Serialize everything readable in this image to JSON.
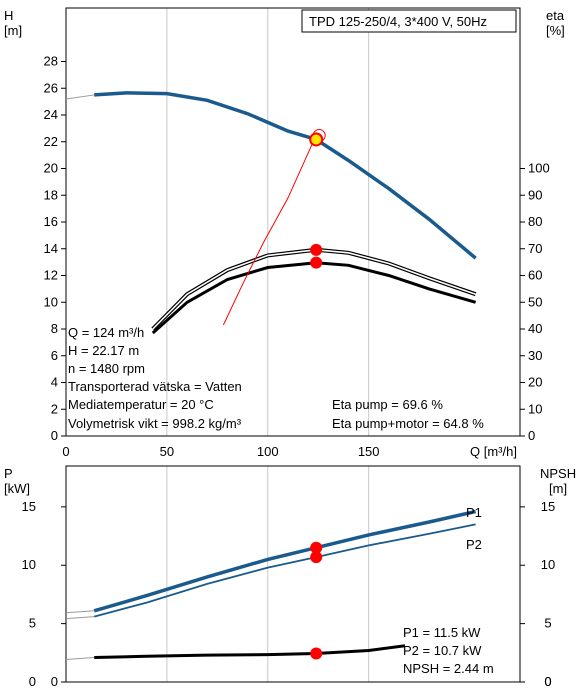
{
  "colors": {
    "head": "#1a5a8c",
    "p1": "#1a5a8c",
    "p2": "#1a5a8c",
    "eta": "#000000",
    "npsh": "#000000",
    "duty_marker": "#ff0000",
    "efficiency_line": "#ff0000",
    "grid": "#c8c8c8"
  },
  "chart_data": [
    {
      "type": "line",
      "title": "TPD 125-250/4, 3*400 V, 50Hz",
      "xlabel": "Q [m³/h]",
      "ylabel": "H",
      "ylabel_unit": "[m]",
      "ylabel_right": "eta",
      "ylabel_right_unit": "[%]",
      "x_ticks": [
        0,
        50,
        100,
        150
      ],
      "y_ticks": [
        0,
        2,
        4,
        6,
        8,
        10,
        12,
        14,
        16,
        18,
        20,
        22,
        24,
        26,
        28
      ],
      "y_right_ticks": [
        0,
        10,
        20,
        30,
        40,
        50,
        60,
        70,
        80,
        90,
        100
      ],
      "xlim": [
        0,
        225
      ],
      "ylim": [
        0,
        32
      ],
      "y_right_lim": [
        0,
        160
      ],
      "grid": true,
      "series": [
        {
          "id": "H",
          "axis": "left",
          "x": [
            14,
            30,
            50,
            70,
            90,
            110,
            124,
            140,
            160,
            180,
            203
          ],
          "values": [
            25.5,
            25.65,
            25.6,
            25.1,
            24.1,
            22.8,
            22.17,
            20.6,
            18.5,
            16.2,
            13.3
          ]
        },
        {
          "id": "eta-pump",
          "axis": "right",
          "x": [
            43,
            60,
            80,
            100,
            124,
            140,
            160,
            180,
            203
          ],
          "values": [
            40,
            53,
            62,
            67.5,
            69.6,
            68.5,
            64.5,
            59,
            53
          ]
        },
        {
          "id": "eta-pump-motor",
          "axis": "right",
          "x": [
            43,
            60,
            80,
            100,
            124,
            140,
            160,
            180,
            203
          ],
          "values": [
            38.5,
            50,
            58.5,
            63,
            64.8,
            63.8,
            60,
            55,
            50
          ]
        },
        {
          "id": "efficiency-curve",
          "axis": "left",
          "x": [
            78,
            88,
            98,
            110,
            124
          ],
          "values": [
            8.3,
            11.5,
            14.5,
            17.8,
            22.5
          ]
        }
      ],
      "duty_points": [
        {
          "axis": "left",
          "x": 124,
          "y": 22.17
        },
        {
          "axis": "right",
          "x": 124,
          "y": 69.6
        },
        {
          "axis": "right",
          "x": 124,
          "y": 64.8
        }
      ],
      "info_left": [
        "Q = 124 m³/h",
        "H = 22.17 m",
        "n = 1480 rpm",
        "Transporterad vätska = Vatten",
        "Mediatemperatur = 20 °C",
        "Volymetrisk vikt = 998.2 kg/m³"
      ],
      "info_right": [
        "Eta pump = 69.6 %",
        "Eta pump+motor = 64.8 %"
      ]
    },
    {
      "type": "line",
      "xlabel": "",
      "ylabel": "P",
      "ylabel_unit": "[kW]",
      "ylabel_right": "NPSH",
      "ylabel_right_unit": "[m]",
      "y_ticks": [
        0,
        5,
        10,
        15
      ],
      "y_right_ticks": [
        0,
        5,
        10,
        15
      ],
      "xlim": [
        0,
        225
      ],
      "ylim": [
        0,
        18.5
      ],
      "y_right_lim": [
        0,
        18.5
      ],
      "grid": true,
      "series": [
        {
          "id": "P1",
          "name": "P1",
          "axis": "left",
          "x": [
            14,
            40,
            70,
            100,
            124,
            150,
            180,
            203
          ],
          "values": [
            6.1,
            7.4,
            9.0,
            10.5,
            11.5,
            12.6,
            13.7,
            14.6
          ]
        },
        {
          "id": "P2",
          "name": "P2",
          "axis": "left",
          "x": [
            14,
            40,
            70,
            100,
            124,
            150,
            180,
            203
          ],
          "values": [
            5.6,
            6.8,
            8.4,
            9.8,
            10.7,
            11.7,
            12.7,
            13.5
          ]
        },
        {
          "id": "NPSH",
          "axis": "right",
          "x": [
            14,
            40,
            70,
            100,
            124,
            150,
            168
          ],
          "values": [
            2.1,
            2.2,
            2.3,
            2.35,
            2.44,
            2.7,
            3.1
          ]
        }
      ],
      "duty_points": [
        {
          "axis": "left",
          "x": 124,
          "y": 11.5
        },
        {
          "axis": "left",
          "x": 124,
          "y": 10.7
        },
        {
          "axis": "right",
          "x": 124,
          "y": 2.44
        }
      ],
      "info_right": [
        "P1 = 11.5 kW",
        "P2 = 10.7 kW",
        "NPSH = 2.44 m"
      ]
    }
  ]
}
